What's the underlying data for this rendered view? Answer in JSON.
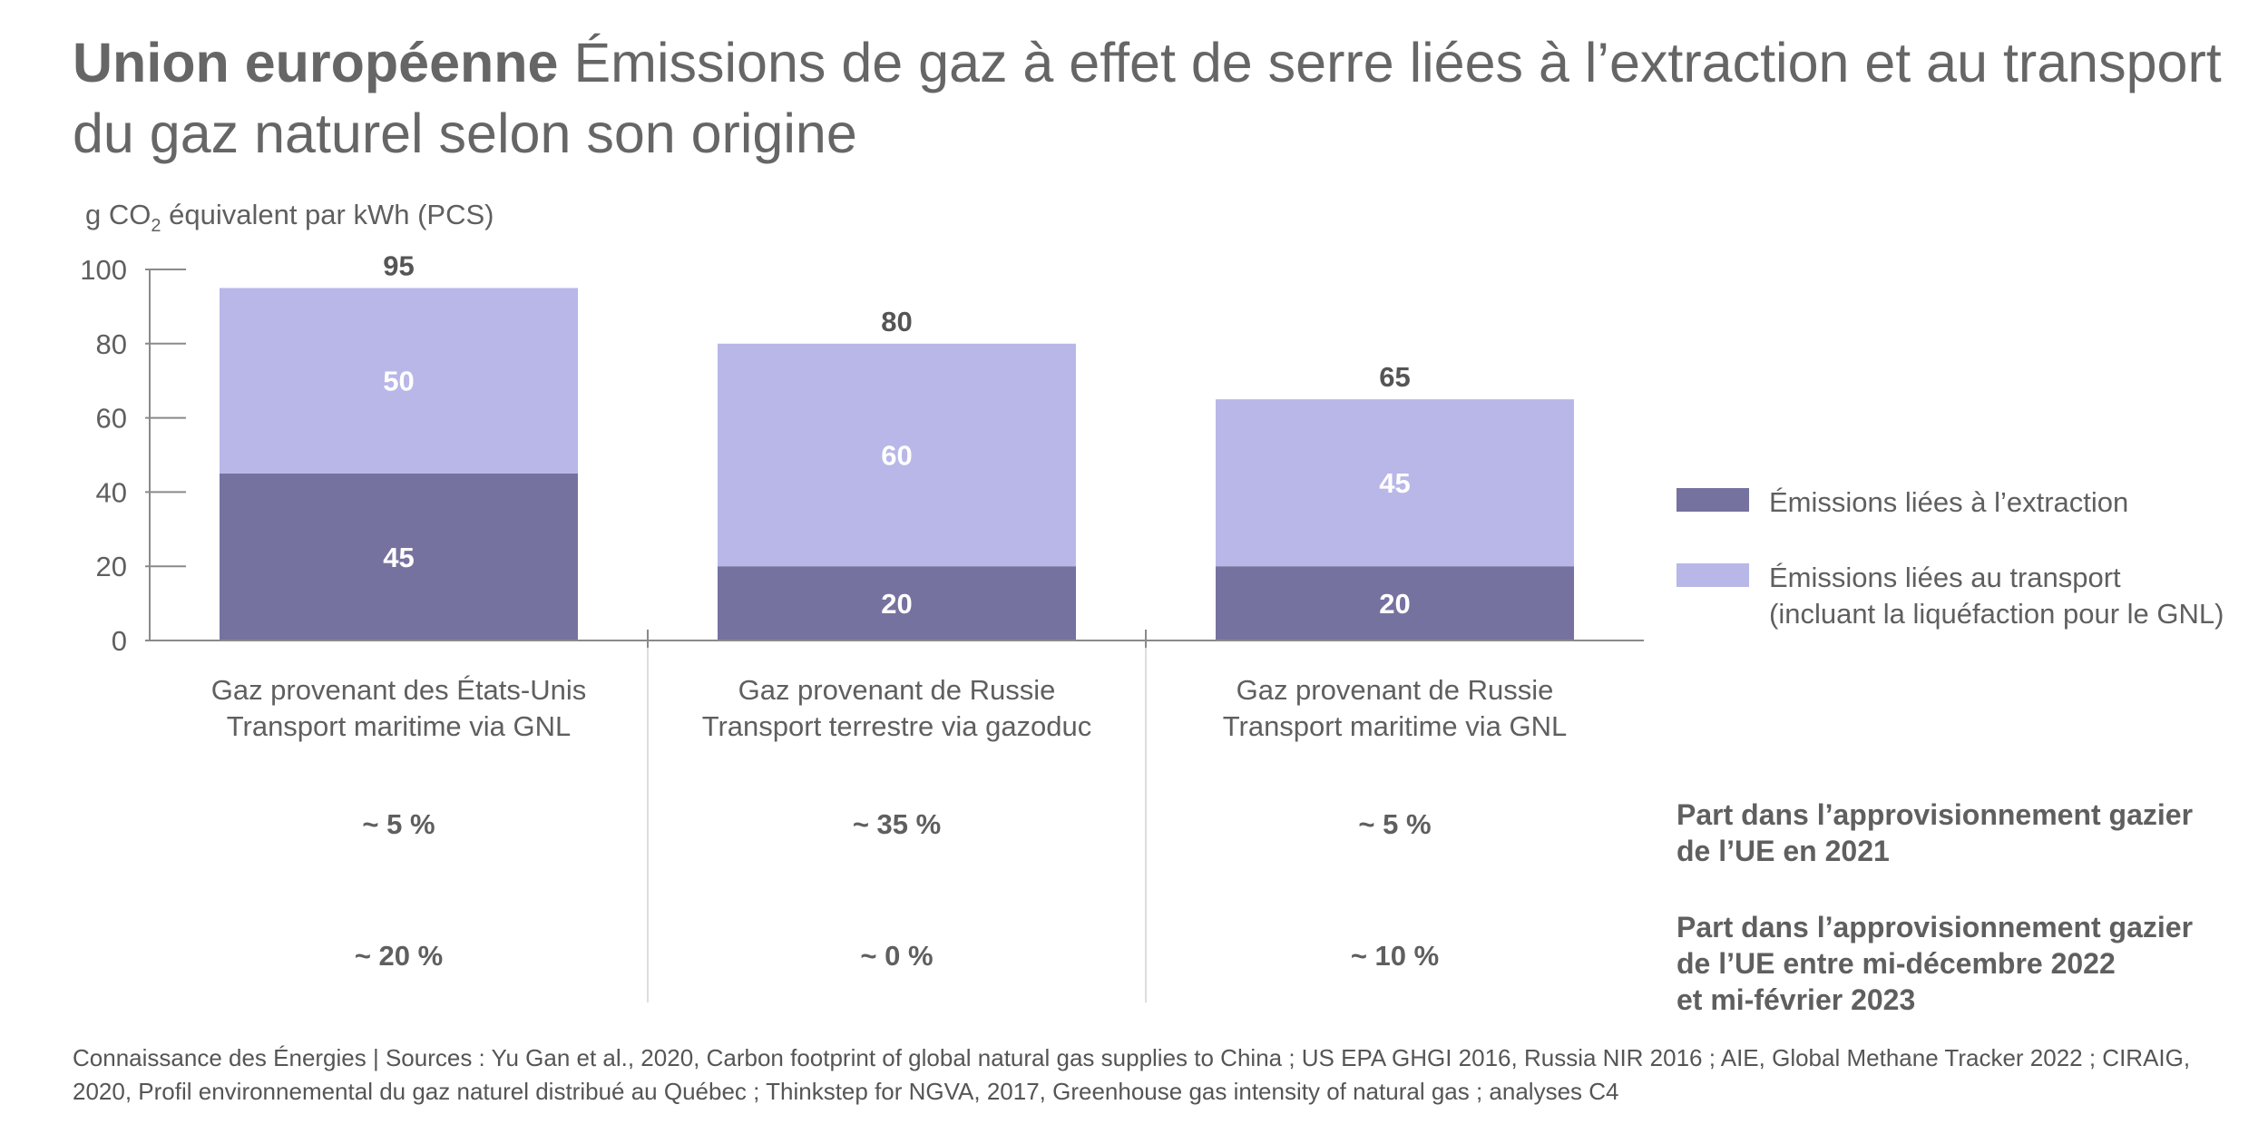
{
  "title": {
    "bold": "Union européenne",
    "rest": "Émissions de gaz à effet de serre liées à l’extraction et au transport du gaz naturel selon son origine"
  },
  "chart_data": {
    "type": "bar",
    "stacked": true,
    "ylabel_prefix": "g CO",
    "ylabel_sub": "2",
    "ylabel_suffix": " équivalent par kWh (PCS)",
    "ylim": [
      0,
      100
    ],
    "yticks": [
      "0",
      "20",
      "40",
      "60",
      "80",
      "100"
    ],
    "categories": [
      [
        "Gaz provenant des États-Unis",
        "Transport maritime via GNL"
      ],
      [
        "Gaz provenant de Russie",
        "Transport terrestre via gazoduc"
      ],
      [
        "Gaz provenant de Russie",
        "Transport maritime via GNL"
      ]
    ],
    "series": [
      {
        "name": "Émissions liées à l’extraction",
        "color": "#7572a0",
        "values": [
          45,
          20,
          20
        ]
      },
      {
        "name": "Émissions liées au transport (incluant la liquéfaction pour le GNL)",
        "color": "#b8b7e8",
        "values": [
          50,
          60,
          45
        ]
      }
    ],
    "segment_labels": [
      [
        "45",
        "20",
        "20"
      ],
      [
        "50",
        "60",
        "45"
      ]
    ],
    "totals": [
      "95",
      "80",
      "65"
    ],
    "legend": {
      "placement": "right",
      "items": [
        {
          "lines": [
            "Émissions liées à l’extraction"
          ],
          "color": "#7572a0"
        },
        {
          "lines": [
            "Émissions liées au transport",
            "(incluant la liquéfaction pour le GNL)"
          ],
          "color": "#b8b7e8"
        }
      ]
    },
    "table": [
      {
        "label": [
          "Part dans l’approvisionnement gazier",
          "de l’UE en 2021"
        ],
        "values": [
          "~ 5 %",
          "~ 35 %",
          "~ 5 %"
        ]
      },
      {
        "label": [
          "Part dans l’approvisionnement gazier",
          "de l’UE entre mi-décembre 2022",
          "et mi-février 2023"
        ],
        "values": [
          "~ 20 %",
          "~ 0 %",
          "~ 10 %"
        ]
      }
    ]
  },
  "footer": "Connaissance des Énergies | Sources : Yu Gan et al., 2020, Carbon footprint of global natural gas supplies to China ; US EPA GHGI 2016, Russia NIR 2016 ; AIE, Global Methane Tracker 2022 ; CIRAIG, 2020, Profil environnemental du gaz naturel distribué au Québec ; Thinkstep for NGVA, 2017, Greenhouse gas intensity of natural gas ; analyses C4"
}
